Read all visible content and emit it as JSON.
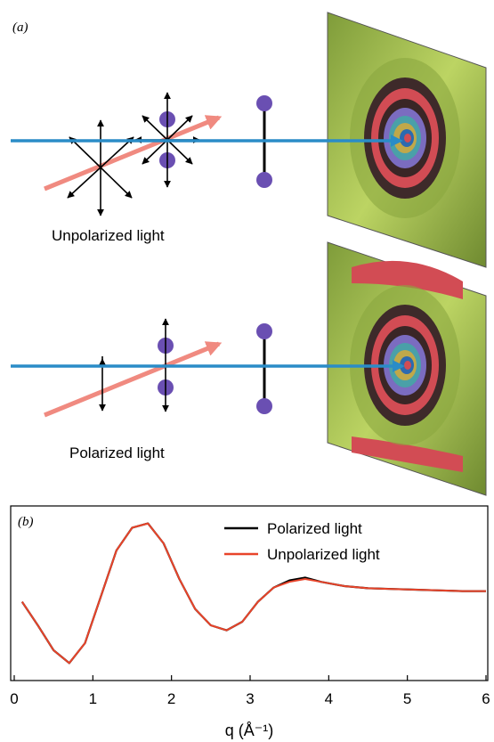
{
  "panel_a": {
    "label": "(a)",
    "top_caption": "Unpolarized light",
    "bottom_caption": "Polarized light"
  },
  "panel_b": {
    "label": "(b)",
    "legend": [
      "Polarized light",
      "Unpolarized light"
    ]
  },
  "colors": {
    "beam": "#2a8cc7",
    "incoming_arrow": "#f08a80",
    "atom": "#6a4fb2",
    "detector_bg": "#a3bf52",
    "ring_red": "#d24c54",
    "polarized_series": "#000000",
    "unpolarized_series": "#e8442a"
  },
  "chart_data": {
    "type": "line",
    "xlabel": "q (Å⁻¹)",
    "ylabel": "",
    "xlim": [
      0,
      6
    ],
    "ylim": [
      -1.2,
      1.2
    ],
    "xticks": [
      0,
      1,
      2,
      3,
      4,
      5,
      6
    ],
    "legend_position": "top-right",
    "series": [
      {
        "name": "Polarized light",
        "color": "#000000",
        "x": [
          0.1,
          0.3,
          0.5,
          0.7,
          0.9,
          1.1,
          1.3,
          1.5,
          1.7,
          1.9,
          2.1,
          2.3,
          2.5,
          2.7,
          2.9,
          3.1,
          3.3,
          3.5,
          3.7,
          3.9,
          4.2,
          4.5,
          4.8,
          5.1,
          5.4,
          5.7,
          6.0
        ],
        "y": [
          -0.12,
          -0.45,
          -0.8,
          -0.98,
          -0.7,
          -0.05,
          0.6,
          0.92,
          0.98,
          0.7,
          0.2,
          -0.22,
          -0.45,
          -0.52,
          -0.4,
          -0.12,
          0.08,
          0.18,
          0.22,
          0.16,
          0.1,
          0.07,
          0.06,
          0.05,
          0.04,
          0.03,
          0.03
        ]
      },
      {
        "name": "Unpolarized light",
        "color": "#e8442a",
        "x": [
          0.1,
          0.3,
          0.5,
          0.7,
          0.9,
          1.1,
          1.3,
          1.5,
          1.7,
          1.9,
          2.1,
          2.3,
          2.5,
          2.7,
          2.9,
          3.1,
          3.3,
          3.5,
          3.7,
          3.9,
          4.2,
          4.5,
          4.8,
          5.1,
          5.4,
          5.7,
          6.0
        ],
        "y": [
          -0.12,
          -0.45,
          -0.8,
          -0.98,
          -0.7,
          -0.05,
          0.6,
          0.92,
          0.98,
          0.7,
          0.2,
          -0.22,
          -0.45,
          -0.52,
          -0.4,
          -0.12,
          0.08,
          0.16,
          0.2,
          0.16,
          0.1,
          0.07,
          0.06,
          0.05,
          0.04,
          0.03,
          0.03
        ]
      }
    ]
  }
}
